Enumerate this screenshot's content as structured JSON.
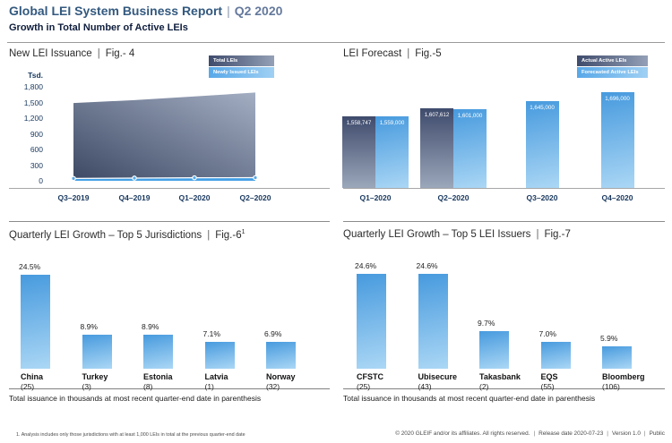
{
  "pipe": "|",
  "header": {
    "title": "Global LEI System Business Report",
    "separator": "|",
    "period": "Q2 2020",
    "subtitle": "Growth in Total Number of Active LEIs"
  },
  "panels": {
    "fig4": {
      "title": "New LEI Issuance",
      "fig": "Fig.- 4",
      "legend": [
        "Total LEIs",
        "Newly Issued LEIs"
      ]
    },
    "fig5": {
      "title": "LEI Forecast",
      "fig": "Fig.-5",
      "legend": [
        "Actual Active LEIs",
        "Forecasted Active LEIs"
      ]
    },
    "fig6": {
      "title": "Quarterly LEI Growth – Top 5 Jurisdictions",
      "fig": "Fig.-6",
      "fig_sup": "1",
      "caption": "Total issuance in thousands at most recent quarter-end date in parenthesis"
    },
    "fig7": {
      "title": "Quarterly LEI Growth – Top 5 LEI Issuers",
      "fig": "Fig.-7",
      "caption": "Total issuance in thousands at most recent quarter-end date in parenthesis"
    }
  },
  "chart_data": [
    {
      "type": "area",
      "title": "New LEI Issuance | Fig.- 4",
      "categories": [
        "Q3–2019",
        "Q4–2019",
        "Q1–2020",
        "Q2–2020"
      ],
      "series": [
        {
          "name": "Total LEIs",
          "values": [
            1490,
            1545,
            1615,
            1690
          ]
        },
        {
          "name": "Newly Issued LEIs",
          "values": [
            45,
            52,
            58,
            60
          ]
        }
      ],
      "ylabel": "Tsd.",
      "ylim": [
        0,
        1800
      ],
      "yticks": [
        0,
        300,
        600,
        900,
        1200,
        1500,
        1800
      ],
      "unit": "thousands",
      "grid": false,
      "legend_position": "top-right"
    },
    {
      "type": "bar",
      "title": "LEI Forecast | Fig.-5",
      "categories": [
        "Q1–2020",
        "Q2–2020",
        "Q3–2020",
        "Q4–2020"
      ],
      "series": [
        {
          "name": "Actual Active LEIs",
          "values": [
            1558747,
            1607612,
            null,
            null
          ]
        },
        {
          "name": "Forecasted Active LEIs",
          "values": [
            1559000,
            1601000,
            1645000,
            1696000
          ]
        }
      ],
      "data_labels": true,
      "grid": false,
      "legend_position": "top-right"
    },
    {
      "type": "bar",
      "title": "Quarterly LEI Growth – Top 5 Jurisdictions | Fig.-6(1)",
      "categories": [
        "China",
        "Turkey",
        "Estonia",
        "Latvia",
        "Norway"
      ],
      "counts": [
        25,
        3,
        8,
        1,
        32
      ],
      "values": [
        24.5,
        8.9,
        8.9,
        7.1,
        6.9
      ],
      "unit": "%",
      "data_labels": true,
      "grid": false
    },
    {
      "type": "bar",
      "title": "Quarterly LEI Growth – Top 5 LEI Issuers | Fig.-7",
      "categories": [
        "CFSTC",
        "Ubisecure",
        "Takasbank",
        "EQS",
        "Bloomberg"
      ],
      "counts": [
        25,
        43,
        2,
        55,
        106
      ],
      "values": [
        24.6,
        24.6,
        9.7,
        7.0,
        5.9
      ],
      "unit": "%",
      "data_labels": true,
      "grid": false
    }
  ],
  "footnote": "1. Analysis includes only those jurisdictions with at least 1,000 LEIs in total at the previous quarter-end date",
  "footer": {
    "copyright": "© 2020 GLEIF and/or its affiliates. All rights reserved.",
    "release": "Release date 2020-07-23",
    "version": "Version 1.0",
    "visibility": "Public"
  },
  "colors": {
    "title_blue": "#33597f",
    "period_blue": "#64799c",
    "subtitle_navy": "#0f1e3d",
    "axis_label_navy": "#17375e",
    "bar_light_top": "#479ade",
    "bar_light_bottom": "#abd7f5",
    "bar_dark_top": "#3f4b6c",
    "bar_dark_bottom": "#9ba7ba",
    "area_dark": "#3d4964",
    "area_light": "#a3aec3",
    "band_blue": "#44a0e6"
  }
}
